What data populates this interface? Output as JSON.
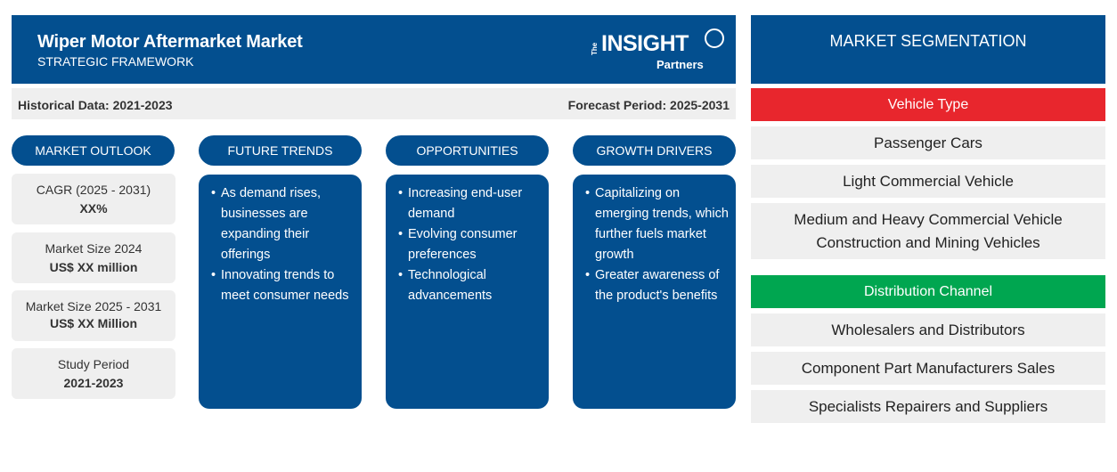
{
  "header": {
    "title": "Wiper Motor Aftermarket Market",
    "subtitle": "STRATEGIC FRAMEWORK",
    "logo": {
      "the": "The",
      "main": "INSIGHT",
      "partners": "Partners"
    }
  },
  "periods": {
    "historical": "Historical Data: 2021-2023",
    "forecast": "Forecast Period: 2025-2031"
  },
  "columns": [
    {
      "title": "MARKET OUTLOOK"
    },
    {
      "title": "FUTURE TRENDS",
      "bullets": [
        "As demand rises, businesses are expanding their offerings",
        "Innovating trends to meet consumer needs"
      ]
    },
    {
      "title": "OPPORTUNITIES",
      "bullets": [
        "Increasing end-user demand",
        "Evolving consumer preferences",
        "Technological advancements"
      ]
    },
    {
      "title": "GROWTH DRIVERS",
      "bullets": [
        "Capitalizing on emerging trends, which further fuels market growth",
        "Greater awareness of the product's benefits"
      ]
    }
  ],
  "outlook": [
    {
      "label": "CAGR (2025 - 2031)",
      "value": "XX%"
    },
    {
      "label": "Market Size 2024",
      "value": "US$ XX million"
    },
    {
      "label": "Market Size 2025 - 2031",
      "value": "US$ XX Million"
    },
    {
      "label": "Study Period",
      "value": "2021-2023"
    }
  ],
  "segmentation": {
    "title": "MARKET SEGMENTATION",
    "categories": [
      {
        "name": "Vehicle Type",
        "color": "#e8262d",
        "items": [
          "Passenger Cars",
          "Light Commercial Vehicle",
          "Medium and Heavy Commercial Vehicle",
          "Construction and Mining Vehicles"
        ]
      },
      {
        "name": "Distribution Channel",
        "color": "#00a650",
        "items": [
          "Wholesalers and Distributors",
          "Component Part Manufacturers Sales",
          "Specialists Repairers and Suppliers"
        ]
      }
    ]
  },
  "colors": {
    "primary": "#034f8f",
    "panel": "#efefef"
  }
}
